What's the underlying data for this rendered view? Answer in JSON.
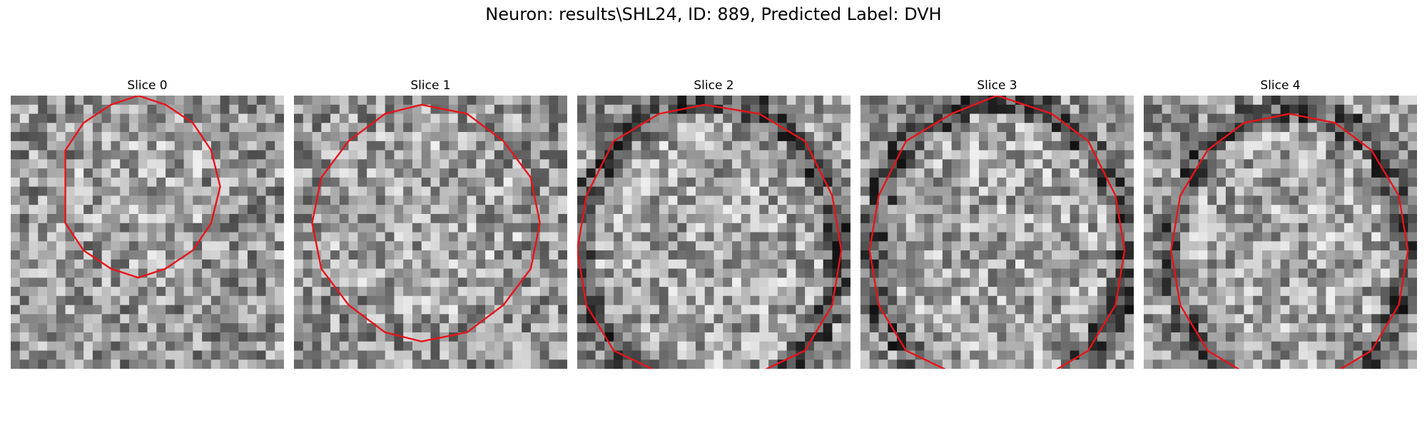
{
  "figure": {
    "title": "Neuron: results\\SHL24, ID: 889, Predicted Label: DVH"
  },
  "panels": [
    {
      "title": "Slice 0",
      "seed": 11,
      "contour_color": "#e8141a"
    },
    {
      "title": "Slice 1",
      "seed": 23,
      "contour_color": "#e8141a"
    },
    {
      "title": "Slice 2",
      "seed": 37,
      "contour_color": "#e8141a"
    },
    {
      "title": "Slice 3",
      "seed": 53,
      "contour_color": "#e8141a"
    },
    {
      "title": "Slice 4",
      "seed": 71,
      "contour_color": "#e8141a"
    }
  ]
}
